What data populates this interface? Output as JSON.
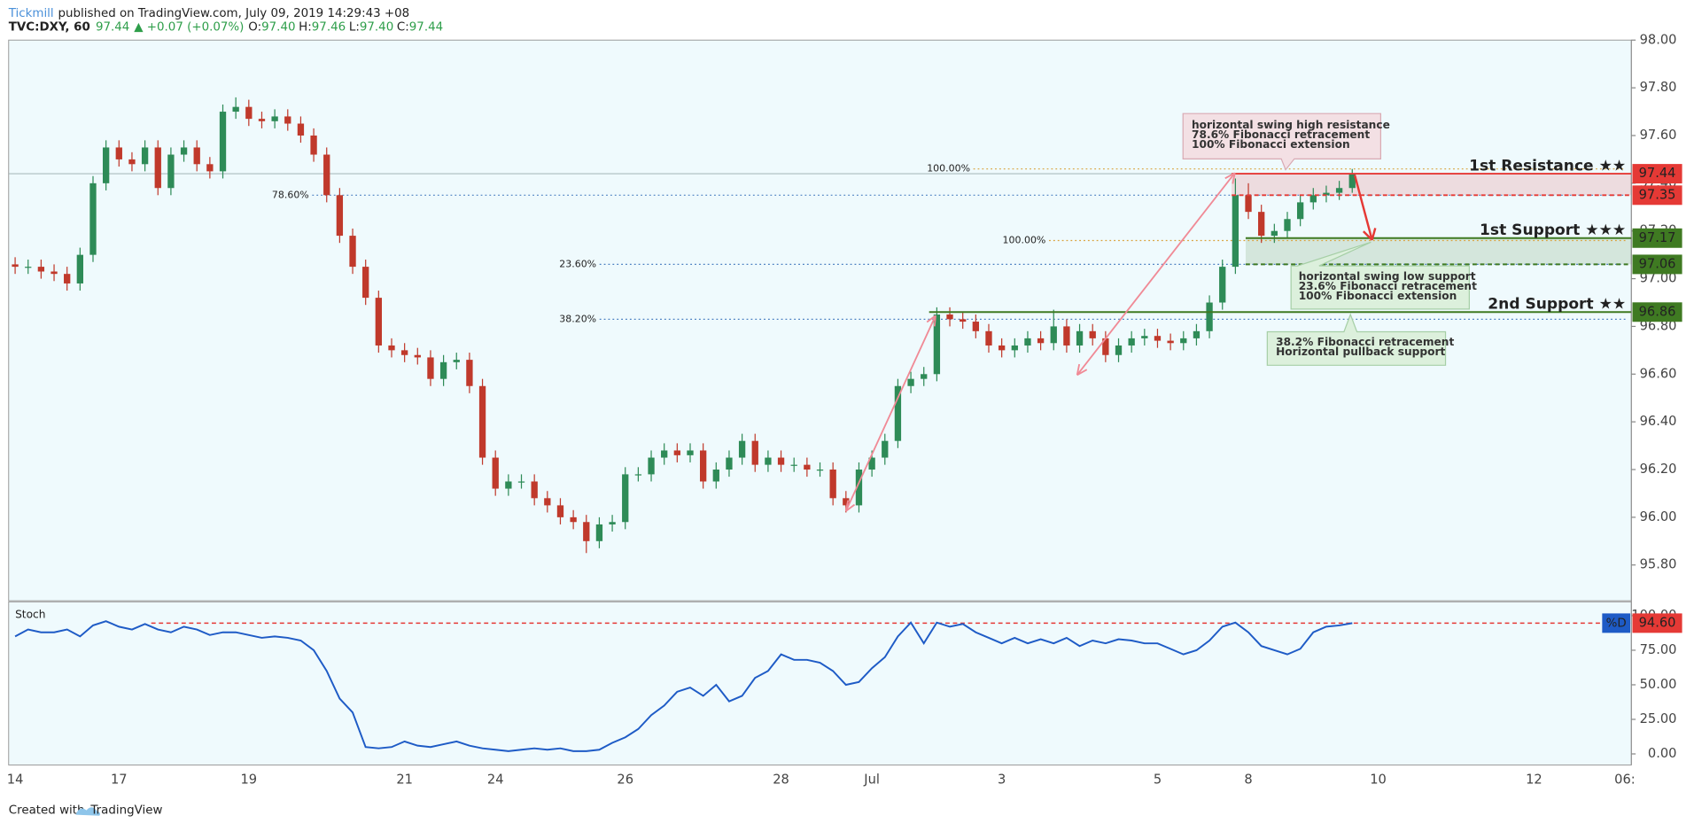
{
  "header": {
    "author": "Tickmill",
    "published": "published on TradingView.com, July 09, 2019 14:29:43 +08",
    "symbol": "TVC:DXY, 60",
    "last": "97.44",
    "change": "▲ +0.07 (+0.07%)",
    "ohlc": [
      {
        "label": "O:",
        "value": "97.40"
      },
      {
        "label": "H:",
        "value": "97.46"
      },
      {
        "label": "L:",
        "value": "97.40"
      },
      {
        "label": "C:",
        "value": "97.44"
      }
    ]
  },
  "footer": {
    "text": "Created with",
    "brand": "TradingView"
  },
  "chart_data": {
    "type": "candlestick",
    "categories": [
      "14",
      null,
      null,
      null,
      null,
      null,
      null,
      null,
      "17",
      null,
      null,
      null,
      null,
      null,
      null,
      null,
      null,
      null,
      "19",
      null,
      null,
      null,
      null,
      null,
      null,
      null,
      null,
      null,
      null,
      null,
      "21",
      null,
      null,
      null,
      null,
      null,
      null,
      "24",
      null,
      null,
      null,
      null,
      null,
      null,
      null,
      null,
      null,
      "26",
      null,
      null,
      null,
      null,
      null,
      null,
      null,
      null,
      null,
      null,
      null,
      "28",
      null,
      null,
      null,
      null,
      null,
      null,
      "Jul",
      null,
      null,
      null,
      null,
      null,
      null,
      null,
      null,
      null,
      "3",
      null,
      null,
      null,
      null,
      null,
      null,
      null,
      null,
      null,
      null,
      null,
      "5",
      null,
      null,
      null,
      null,
      null,
      null,
      "8",
      null,
      null,
      null,
      null,
      null,
      null,
      null,
      null,
      null,
      "10",
      null,
      null,
      null,
      null,
      null,
      null,
      null,
      null,
      null,
      null,
      null,
      "12",
      null,
      null,
      null,
      null,
      null,
      null,
      "06:"
    ],
    "candles": {
      "open": [
        97.06,
        97.05,
        97.05,
        97.03,
        97.02,
        96.98,
        97.1,
        97.4,
        97.55,
        97.5,
        97.48,
        97.55,
        97.38,
        97.52,
        97.55,
        97.48,
        97.45,
        97.7,
        97.72,
        97.67,
        97.66,
        97.68,
        97.65,
        97.6,
        97.52,
        97.35,
        97.18,
        97.05,
        96.92,
        96.72,
        96.7,
        96.68,
        96.67,
        96.58,
        96.65,
        96.66,
        96.55,
        96.25,
        96.12,
        96.15,
        96.15,
        96.08,
        96.05,
        96.0,
        95.98,
        95.9,
        95.97,
        95.98,
        96.18,
        96.18,
        96.25,
        96.28,
        96.26,
        96.28,
        96.15,
        96.2,
        96.25,
        96.32,
        96.22,
        96.25,
        96.22,
        96.22,
        96.2,
        96.2,
        96.08,
        96.05,
        96.2,
        96.25,
        96.32,
        96.55,
        96.58,
        96.6,
        96.85,
        96.83,
        96.82,
        96.78,
        96.72,
        96.7,
        96.72,
        96.75,
        96.73,
        96.8,
        96.72,
        96.78,
        96.75,
        96.68,
        96.72,
        96.75,
        96.76,
        96.74,
        96.73,
        96.75,
        96.78,
        96.9,
        97.05,
        97.35,
        97.28,
        97.18,
        97.2,
        97.25,
        97.32,
        97.35,
        97.36,
        97.38,
        null,
        null,
        null,
        null,
        null,
        null,
        null,
        null,
        null,
        null,
        null,
        null,
        null,
        null,
        null,
        null,
        null,
        null,
        null,
        null,
        null
      ],
      "high": [
        97.09,
        97.08,
        97.08,
        97.06,
        97.05,
        97.13,
        97.43,
        97.58,
        97.58,
        97.53,
        97.58,
        97.58,
        97.55,
        97.58,
        97.58,
        97.51,
        97.73,
        97.76,
        97.75,
        97.7,
        97.71,
        97.71,
        97.68,
        97.63,
        97.55,
        97.38,
        97.21,
        97.08,
        96.95,
        96.75,
        96.73,
        96.71,
        96.7,
        96.68,
        96.69,
        96.69,
        96.58,
        96.28,
        96.18,
        96.18,
        96.18,
        96.11,
        96.08,
        96.03,
        96.01,
        96.0,
        96.01,
        96.21,
        96.21,
        96.28,
        96.31,
        96.31,
        96.31,
        96.31,
        96.23,
        96.28,
        96.35,
        96.35,
        96.28,
        96.28,
        96.25,
        96.25,
        96.23,
        96.23,
        96.11,
        96.23,
        96.28,
        96.35,
        96.58,
        96.61,
        96.63,
        96.88,
        96.88,
        96.86,
        96.85,
        96.81,
        96.75,
        96.75,
        96.78,
        96.78,
        96.87,
        96.83,
        96.81,
        96.81,
        96.78,
        96.75,
        96.78,
        96.79,
        96.79,
        96.77,
        96.78,
        96.81,
        96.93,
        97.08,
        97.42,
        97.4,
        97.31,
        97.23,
        97.28,
        97.35,
        97.38,
        97.39,
        97.41,
        97.46,
        null,
        null,
        null,
        null,
        null,
        null,
        null,
        null,
        null,
        null,
        null,
        null,
        null,
        null,
        null,
        null,
        null,
        null,
        null,
        null,
        null
      ],
      "low": [
        97.02,
        97.02,
        97.0,
        96.99,
        96.95,
        96.95,
        97.07,
        97.37,
        97.47,
        97.45,
        97.45,
        97.35,
        97.35,
        97.49,
        97.45,
        97.42,
        97.42,
        97.67,
        97.64,
        97.63,
        97.63,
        97.62,
        97.57,
        97.49,
        97.32,
        97.15,
        97.02,
        96.89,
        96.69,
        96.67,
        96.65,
        96.64,
        96.55,
        96.55,
        96.62,
        96.52,
        96.22,
        96.09,
        96.09,
        96.12,
        96.05,
        96.02,
        95.97,
        95.95,
        95.85,
        95.87,
        95.94,
        95.95,
        96.15,
        96.15,
        96.22,
        96.23,
        96.23,
        96.12,
        96.12,
        96.17,
        96.22,
        96.19,
        96.19,
        96.19,
        96.19,
        96.17,
        96.17,
        96.05,
        96.02,
        96.02,
        96.17,
        96.22,
        96.29,
        96.52,
        96.55,
        96.57,
        96.8,
        96.79,
        96.75,
        96.69,
        96.67,
        96.67,
        96.69,
        96.7,
        96.7,
        96.69,
        96.69,
        96.72,
        96.65,
        96.65,
        96.69,
        96.72,
        96.71,
        96.7,
        96.7,
        96.72,
        96.75,
        96.87,
        97.02,
        97.25,
        97.15,
        97.15,
        97.17,
        97.22,
        97.29,
        97.32,
        97.33,
        97.36,
        null,
        null,
        null,
        null,
        null,
        null,
        null,
        null,
        null,
        null,
        null,
        null,
        null,
        null,
        null,
        null,
        null,
        null,
        null,
        null,
        null
      ],
      "close": [
        97.05,
        97.05,
        97.03,
        97.02,
        96.98,
        97.1,
        97.4,
        97.55,
        97.5,
        97.48,
        97.55,
        97.38,
        97.52,
        97.55,
        97.48,
        97.45,
        97.7,
        97.72,
        97.67,
        97.66,
        97.68,
        97.65,
        97.6,
        97.52,
        97.35,
        97.18,
        97.05,
        96.92,
        96.72,
        96.7,
        96.68,
        96.67,
        96.58,
        96.65,
        96.66,
        96.55,
        96.25,
        96.12,
        96.15,
        96.15,
        96.08,
        96.05,
        96.0,
        95.98,
        95.9,
        95.97,
        95.98,
        96.18,
        96.18,
        96.25,
        96.28,
        96.26,
        96.28,
        96.15,
        96.2,
        96.25,
        96.32,
        96.22,
        96.25,
        96.22,
        96.22,
        96.2,
        96.2,
        96.08,
        96.05,
        96.2,
        96.25,
        96.32,
        96.55,
        96.58,
        96.6,
        96.85,
        96.83,
        96.82,
        96.78,
        96.72,
        96.7,
        96.72,
        96.75,
        96.73,
        96.8,
        96.72,
        96.78,
        96.75,
        96.68,
        96.72,
        96.75,
        96.76,
        96.74,
        96.73,
        96.75,
        96.78,
        96.9,
        97.05,
        97.35,
        97.28,
        97.18,
        97.2,
        97.25,
        97.32,
        97.35,
        97.36,
        97.38,
        97.44,
        null,
        null,
        null,
        null,
        null,
        null,
        null,
        null,
        null,
        null,
        null,
        null,
        null,
        null,
        null,
        null,
        null,
        null,
        null,
        null,
        null
      ]
    },
    "up_color": "#2e8b57",
    "down_color": "#c0392b",
    "ylim": [
      95.65,
      98.0
    ],
    "yticks": [
      {
        "value": 95.8,
        "label": "95.80"
      },
      {
        "value": 96.0,
        "label": "96.00"
      },
      {
        "value": 96.2,
        "label": "96.20"
      },
      {
        "value": 96.4,
        "label": "96.40"
      },
      {
        "value": 96.6,
        "label": "96.60"
      },
      {
        "value": 96.8,
        "label": "96.80"
      },
      {
        "value": 97.0,
        "label": "97.00"
      },
      {
        "value": 97.2,
        "label": "97.20"
      },
      {
        "value": 97.4,
        "label": "97.40"
      },
      {
        "value": 97.6,
        "label": "97.60"
      },
      {
        "value": 97.8,
        "label": "97.80"
      },
      {
        "value": 98.0,
        "label": "98.00"
      }
    ],
    "grid": false,
    "levels": [
      {
        "label": "1st Resistance ★★",
        "value": 97.44,
        "color": "#e53935",
        "style": "solid"
      },
      {
        "value": 97.35,
        "color": "#e53935",
        "style": "dashed"
      },
      {
        "label": "1st Support ★★★",
        "value": 97.17,
        "color": "#3f7a22",
        "style": "solid"
      },
      {
        "value": 97.06,
        "color": "#3f7a22",
        "style": "dashed"
      },
      {
        "label": "2nd Support ★★",
        "value": 96.86,
        "color": "#3f7a22",
        "style": "solid"
      }
    ],
    "fib_levels": [
      {
        "label": "100.00%",
        "value": 97.46,
        "color": "#d9a13a"
      },
      {
        "label": "78.60%",
        "value": 97.35,
        "color": "#4a7fc1"
      },
      {
        "label": "100.00%",
        "value": 97.16,
        "color": "#d9a13a"
      },
      {
        "label": "23.60%",
        "value": 97.06,
        "color": "#4a7fc1"
      },
      {
        "label": "38.20%",
        "value": 96.83,
        "color": "#4a7fc1"
      }
    ],
    "callouts": [
      [
        "horizontal swing high resistance",
        "78.6% Fibonacci retracement",
        "100% Fibonacci extension"
      ],
      [
        "horizontal swing low support",
        "23.6% Fibonacci retracement",
        "100% Fibonacci extension"
      ],
      [
        "38.2% Fibonacci retracement",
        "Horizontal pullback support"
      ]
    ],
    "stoch": {
      "name": "Stoch",
      "legend": "%D",
      "color": "#1e5bc6",
      "values": [
        85,
        90,
        88,
        88,
        90,
        85,
        93,
        96,
        92,
        90,
        94,
        90,
        88,
        92,
        90,
        86,
        88,
        88,
        86,
        84,
        85,
        84,
        82,
        75,
        60,
        40,
        30,
        5,
        4,
        5,
        9,
        6,
        5,
        7,
        9,
        6,
        4,
        3,
        2,
        3,
        4,
        3,
        4,
        2,
        2,
        3,
        8,
        12,
        18,
        28,
        35,
        45,
        48,
        42,
        50,
        38,
        42,
        55,
        60,
        72,
        68,
        68,
        66,
        60,
        50,
        52,
        62,
        70,
        85,
        95,
        80,
        95,
        92,
        94,
        88,
        84,
        80,
        84,
        80,
        83,
        80,
        84,
        78,
        82,
        80,
        83,
        82,
        80,
        80,
        76,
        72,
        75,
        82,
        92,
        95,
        88,
        78,
        75,
        72,
        76,
        88,
        92,
        93,
        94.6,
        null,
        null,
        null,
        null,
        null,
        null,
        null,
        null,
        null,
        null,
        null,
        null,
        null,
        null,
        null,
        null,
        null,
        null,
        null,
        null,
        null
      ],
      "level": {
        "value": 94.6,
        "label": "94.60"
      },
      "ylim": [
        -8,
        110
      ],
      "yticks": [
        {
          "value": 0,
          "label": "0.00"
        },
        {
          "value": 25,
          "label": "25.00"
        },
        {
          "value": 50,
          "label": "50.00"
        },
        {
          "value": 75,
          "label": "75.00"
        },
        {
          "value": 100,
          "label": "100.00"
        }
      ]
    }
  }
}
